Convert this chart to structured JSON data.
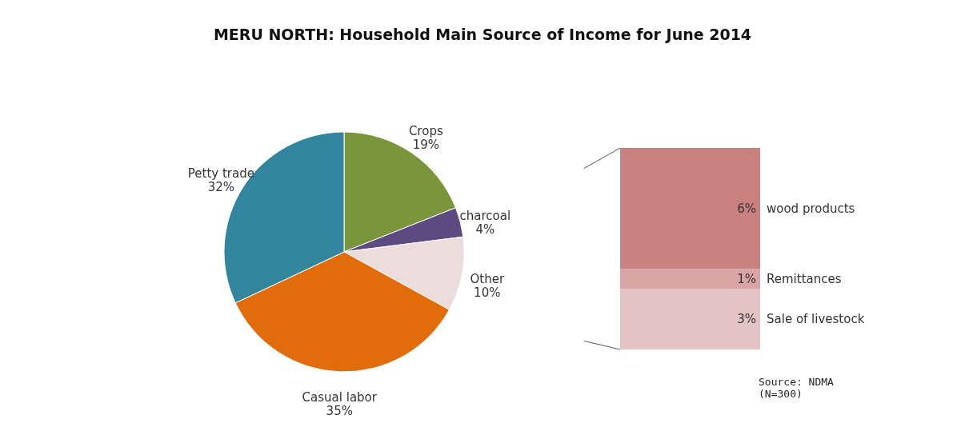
{
  "chart_data": [
    {
      "type": "pie",
      "title": "MERU NORTH: Household Main Source of Income for June 2014",
      "categories": [
        "Crops",
        "charcoal",
        "Other",
        "Casual labor",
        "Petty trade"
      ],
      "values": [
        19,
        4,
        10,
        35,
        32
      ],
      "value_labels": [
        "19%",
        "4%",
        "10%",
        "35%",
        "32%"
      ],
      "colors": [
        "#7a963c",
        "#5d4a80",
        "#ecdcdc",
        "#e36c0a",
        "#31859c"
      ]
    },
    {
      "type": "bar",
      "stacked": true,
      "categories": [
        null
      ],
      "tick_labels": false,
      "annotations": [
        "Source: NDMA\n(N=300)"
      ],
      "series": [
        {
          "name": "Sale of livestock",
          "color": "#e3c3c4",
          "values": [
            3
          ],
          "value_labels": [
            "3%"
          ]
        },
        {
          "name": "Remittances",
          "color": "#d9a5a4",
          "values": [
            1
          ],
          "value_labels": [
            "1%"
          ]
        },
        {
          "name": "wood products",
          "color": "#c9817f",
          "values": [
            6
          ],
          "value_labels": [
            "6%"
          ]
        }
      ]
    }
  ]
}
